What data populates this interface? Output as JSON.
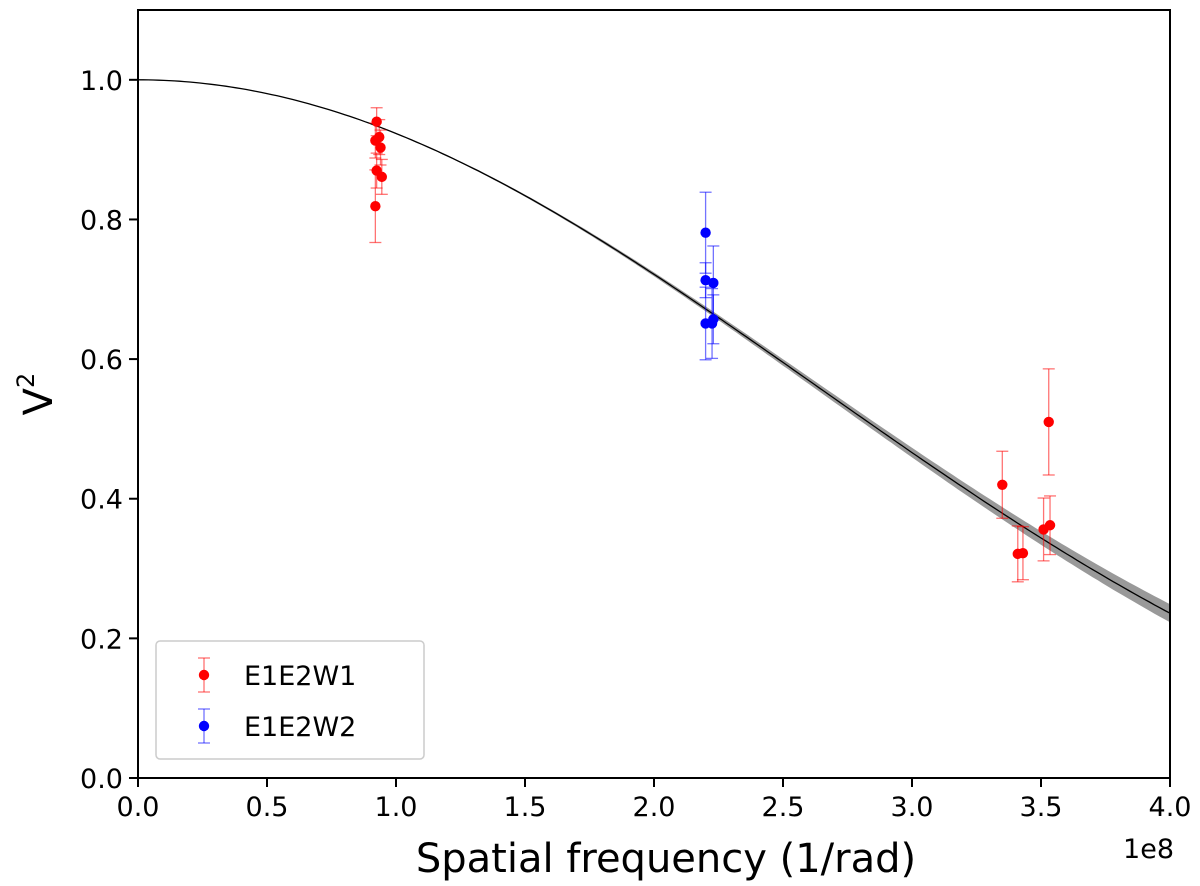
{
  "chart_data": {
    "type": "scatter",
    "title": "",
    "xlabel": "Spatial frequency (1/rad)",
    "ylabel_base": "V",
    "ylabel_sup": "2",
    "x_offset_label": "1e8",
    "xlim": [
      0.0,
      4.0
    ],
    "ylim": [
      0.0,
      1.1
    ],
    "xticks": [
      0.0,
      0.5,
      1.0,
      1.5,
      2.0,
      2.5,
      3.0,
      3.5,
      4.0
    ],
    "xtick_labels": [
      "0.0",
      "0.5",
      "1.0",
      "1.5",
      "2.0",
      "2.5",
      "3.0",
      "3.5",
      "4.0"
    ],
    "yticks": [
      0.0,
      0.2,
      0.4,
      0.6,
      0.8,
      1.0
    ],
    "ytick_labels": [
      "0.0",
      "0.2",
      "0.4",
      "0.6",
      "0.8",
      "1.0"
    ],
    "grid": false,
    "legend_position": "bottom-left",
    "model_curve": {
      "type": "uniform-disk",
      "description": "best-fit model with uncertainty band",
      "color": "#000000",
      "band_color": "#999999",
      "x_at_v2_0236": 4.0,
      "band_halfwidth_at_4": 0.013
    },
    "series": [
      {
        "name": "E1E2W1",
        "color": "#ff0000",
        "points": [
          {
            "x": 0.925,
            "y": 0.94,
            "err": 0.02
          },
          {
            "x": 0.935,
            "y": 0.918,
            "err": 0.025
          },
          {
            "x": 0.92,
            "y": 0.913,
            "err": 0.025
          },
          {
            "x": 0.94,
            "y": 0.903,
            "err": 0.025
          },
          {
            "x": 0.925,
            "y": 0.87,
            "err": 0.025
          },
          {
            "x": 0.945,
            "y": 0.861,
            "err": 0.025
          },
          {
            "x": 0.92,
            "y": 0.819,
            "err": 0.052
          },
          {
            "x": 3.35,
            "y": 0.42,
            "err": 0.048
          },
          {
            "x": 3.41,
            "y": 0.321,
            "err": 0.04
          },
          {
            "x": 3.43,
            "y": 0.322,
            "err": 0.038
          },
          {
            "x": 3.51,
            "y": 0.356,
            "err": 0.045
          },
          {
            "x": 3.53,
            "y": 0.51,
            "err": 0.076
          },
          {
            "x": 3.535,
            "y": 0.362,
            "err": 0.042
          }
        ]
      },
      {
        "name": "E1E2W2",
        "color": "#0000ff",
        "points": [
          {
            "x": 2.2,
            "y": 0.781,
            "err": 0.058
          },
          {
            "x": 2.2,
            "y": 0.713,
            "err": 0.025
          },
          {
            "x": 2.23,
            "y": 0.709,
            "err": 0.053
          },
          {
            "x": 2.2,
            "y": 0.651,
            "err": 0.052
          },
          {
            "x": 2.23,
            "y": 0.657,
            "err": 0.035
          },
          {
            "x": 2.225,
            "y": 0.651,
            "err": 0.05
          }
        ]
      }
    ]
  }
}
